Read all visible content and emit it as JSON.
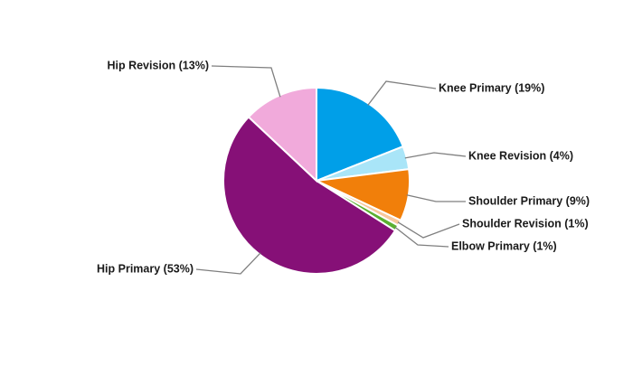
{
  "chart_data": {
    "type": "pie",
    "value_labels": [
      "Knee Primary (19%)",
      "Knee Revision (4%)",
      "Shoulder Primary (9%)",
      "Shoulder Revision (1%)",
      "Elbow Primary (1%)",
      "Hip Primary (53%)",
      "Hip Revision (13%)"
    ],
    "values": [
      19,
      4,
      9,
      1,
      1,
      53,
      13
    ],
    "colors": [
      "#009fe8",
      "#a9e5f8",
      "#f17f0a",
      "#f8c89c",
      "#5bb031",
      "#861077",
      "#f1aadb"
    ]
  }
}
